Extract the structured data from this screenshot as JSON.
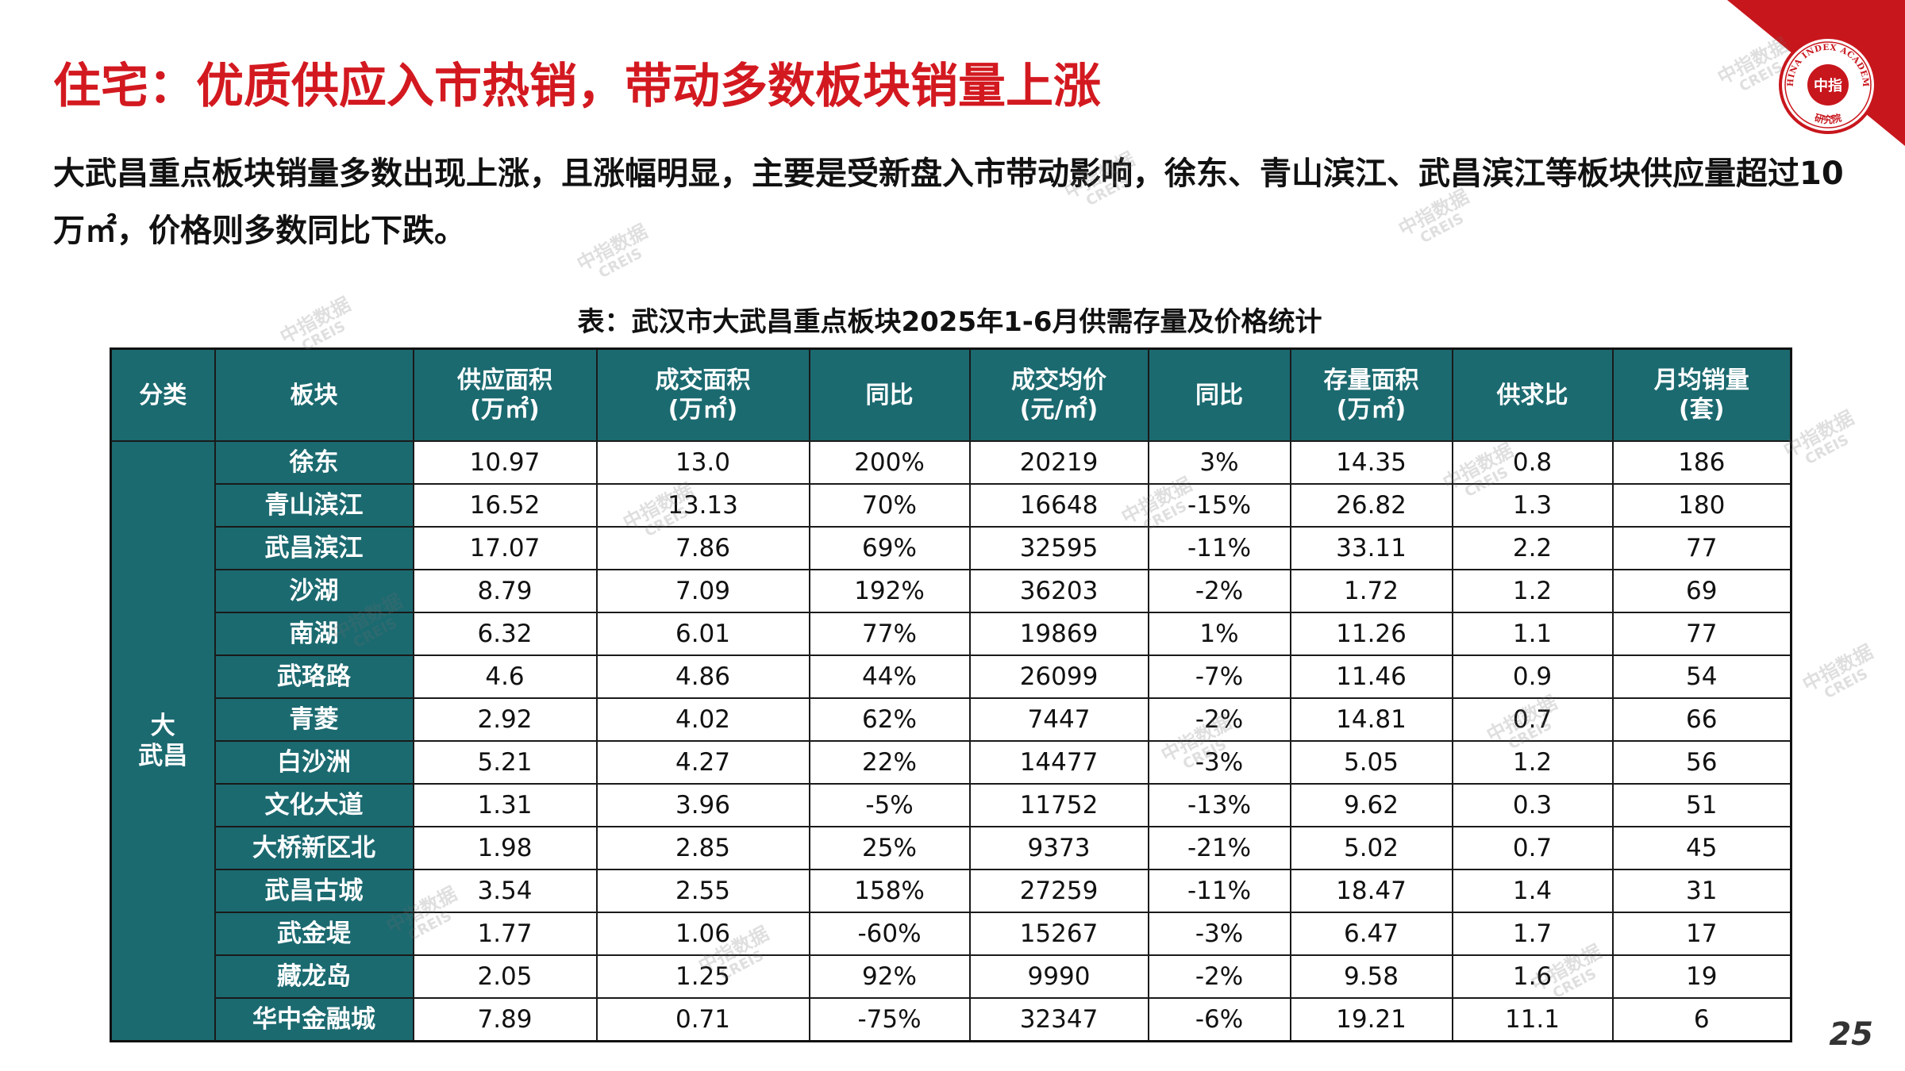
{
  "slide": {
    "title": "住宅：优质供应入市热销，带动多数板块销量上涨",
    "summary": "大武昌重点板块销量多数出现上涨，且涨幅明显，主要是受新盘入市带动影响，徐东、青山滨江、武昌滨江等板块供应量超过10万㎡，价格则多数同比下跌。",
    "page_number": "25"
  },
  "logo": {
    "arc_text": "CHINA INDEX ACADEMY",
    "center_text": "中指",
    "bottom_text": "研究院"
  },
  "watermark": {
    "line1": "中指数据",
    "line2": "CREIS"
  },
  "colors": {
    "title": "#d31920",
    "brand_red": "#c8161d",
    "table_header": "#1b6a70"
  },
  "table": {
    "caption": "表：武汉市大武昌重点板块2025年1-6月供需存量及价格统计",
    "headers": [
      "分类",
      "板块",
      "供应面积\n(万㎡)",
      "成交面积\n(万㎡)",
      "同比",
      "成交均价\n(元/㎡)",
      "同比",
      "存量面积\n(万㎡)",
      "供求比",
      "月均销量\n(套)"
    ],
    "category": "大\n武昌",
    "rows": [
      {
        "block": "徐东",
        "values": [
          "10.97",
          "13.0",
          "200%",
          "20219",
          "3%",
          "14.35",
          "0.8",
          "186"
        ]
      },
      {
        "block": "青山滨江",
        "values": [
          "16.52",
          "13.13",
          "70%",
          "16648",
          "-15%",
          "26.82",
          "1.3",
          "180"
        ]
      },
      {
        "block": "武昌滨江",
        "values": [
          "17.07",
          "7.86",
          "69%",
          "32595",
          "-11%",
          "33.11",
          "2.2",
          "77"
        ]
      },
      {
        "block": "沙湖",
        "values": [
          "8.79",
          "7.09",
          "192%",
          "36203",
          "-2%",
          "1.72",
          "1.2",
          "69"
        ]
      },
      {
        "block": "南湖",
        "values": [
          "6.32",
          "6.01",
          "77%",
          "19869",
          "1%",
          "11.26",
          "1.1",
          "77"
        ]
      },
      {
        "block": "武珞路",
        "values": [
          "4.6",
          "4.86",
          "44%",
          "26099",
          "-7%",
          "11.46",
          "0.9",
          "54"
        ]
      },
      {
        "block": "青菱",
        "values": [
          "2.92",
          "4.02",
          "62%",
          "7447",
          "-2%",
          "14.81",
          "0.7",
          "66"
        ]
      },
      {
        "block": "白沙洲",
        "values": [
          "5.21",
          "4.27",
          "22%",
          "14477",
          "-3%",
          "5.05",
          "1.2",
          "56"
        ]
      },
      {
        "block": "文化大道",
        "values": [
          "1.31",
          "3.96",
          "-5%",
          "11752",
          "-13%",
          "9.62",
          "0.3",
          "51"
        ]
      },
      {
        "block": "大桥新区北",
        "values": [
          "1.98",
          "2.85",
          "25%",
          "9373",
          "-21%",
          "5.02",
          "0.7",
          "45"
        ]
      },
      {
        "block": "武昌古城",
        "values": [
          "3.54",
          "2.55",
          "158%",
          "27259",
          "-11%",
          "18.47",
          "1.4",
          "31"
        ]
      },
      {
        "block": "武金堤",
        "values": [
          "1.77",
          "1.06",
          "-60%",
          "15267",
          "-3%",
          "6.47",
          "1.7",
          "17"
        ]
      },
      {
        "block": "藏龙岛",
        "values": [
          "2.05",
          "1.25",
          "92%",
          "9990",
          "-2%",
          "9.58",
          "1.6",
          "19"
        ]
      },
      {
        "block": "华中金融城",
        "values": [
          "7.89",
          "0.71",
          "-75%",
          "32347",
          "-6%",
          "19.21",
          "11.1",
          "6"
        ]
      }
    ]
  }
}
